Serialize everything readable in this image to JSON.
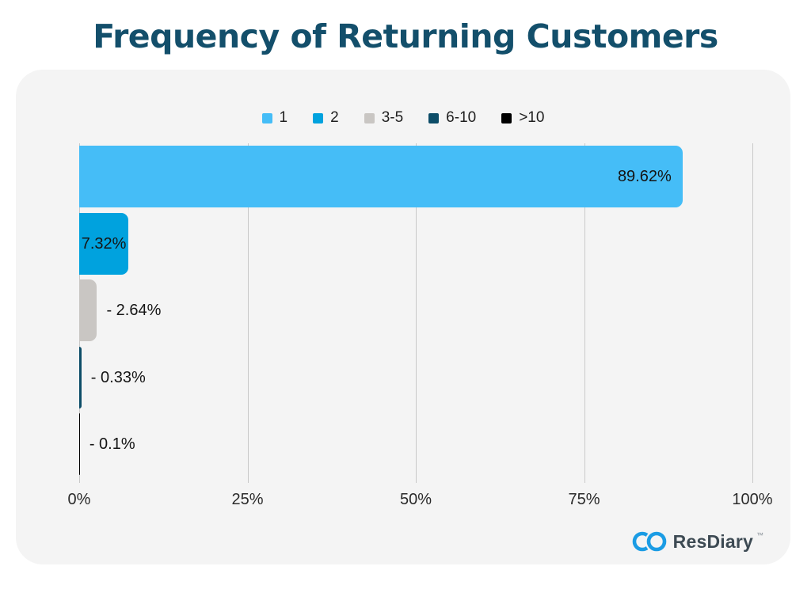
{
  "title": "Frequency of Returning Customers",
  "chart_data": {
    "type": "bar",
    "orientation": "horizontal",
    "categories": [
      "1",
      "2",
      "3-5",
      "6-10",
      ">10"
    ],
    "values": [
      89.62,
      7.32,
      2.64,
      0.33,
      0.1
    ],
    "value_labels": [
      "89.62%",
      "7.32%",
      "- 2.64%",
      "- 0.33%",
      "- 0.1%"
    ],
    "label_placements": [
      "inside-end",
      "inside-center",
      "outside",
      "outside",
      "outside"
    ],
    "bar_colors": [
      "#45BDF7",
      "#00A2DE",
      "#C9C6C3",
      "#0D4D68",
      "#000000"
    ],
    "title": "Frequency of Returning Customers",
    "xlabel": "",
    "ylabel": "",
    "xlim": [
      0,
      100
    ],
    "x_tick_values": [
      0,
      25,
      50,
      75,
      100
    ],
    "x_tick_labels": [
      "0%",
      "25%",
      "50%",
      "75%",
      "100%"
    ],
    "grid": true,
    "legend_position": "top",
    "legend": [
      {
        "label": "1",
        "color": "#45BDF7"
      },
      {
        "label": "2",
        "color": "#00A2DE"
      },
      {
        "label": "3-5",
        "color": "#C9C6C3"
      },
      {
        "label": "6-10",
        "color": "#0D4D68"
      },
      {
        "label": ">10",
        "color": "#000000"
      }
    ]
  },
  "branding": {
    "logo_text": "ResDiary",
    "trademark": "™",
    "logo_color": "#1B9CE4",
    "text_color": "#3D4A53"
  },
  "colors": {
    "title": "#134F6B",
    "page_bg": "#FFFFFF",
    "card_bg": "#F4F4F4",
    "gridline": "#C9C9C9",
    "value_label": "#151515"
  }
}
